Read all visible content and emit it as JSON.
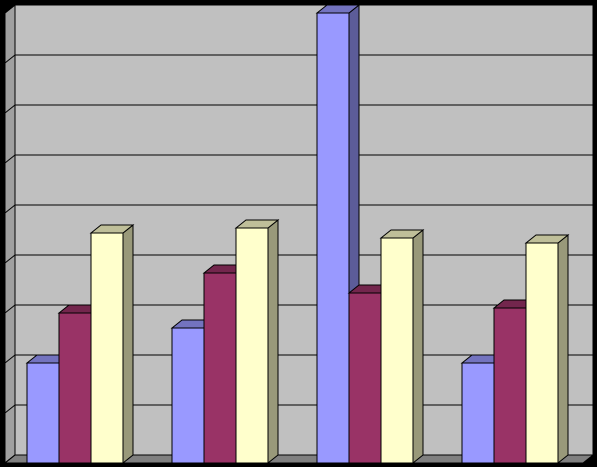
{
  "chart_data": {
    "type": "bar3d",
    "categories": [
      null,
      null,
      null,
      null
    ],
    "series": [
      {
        "color": "#9999ff",
        "values": [
          2.0,
          2.7,
          9.0,
          2.0
        ]
      },
      {
        "color": "#993366",
        "values": [
          3.0,
          3.8,
          3.4,
          3.1
        ]
      },
      {
        "color": "#ffffcc",
        "values": [
          4.6,
          4.7,
          4.5,
          4.4
        ]
      }
    ],
    "ylim": [
      0,
      9
    ],
    "yticks": [
      0,
      1,
      2,
      3,
      4,
      5,
      6,
      7,
      8,
      9
    ],
    "grid": true
  }
}
